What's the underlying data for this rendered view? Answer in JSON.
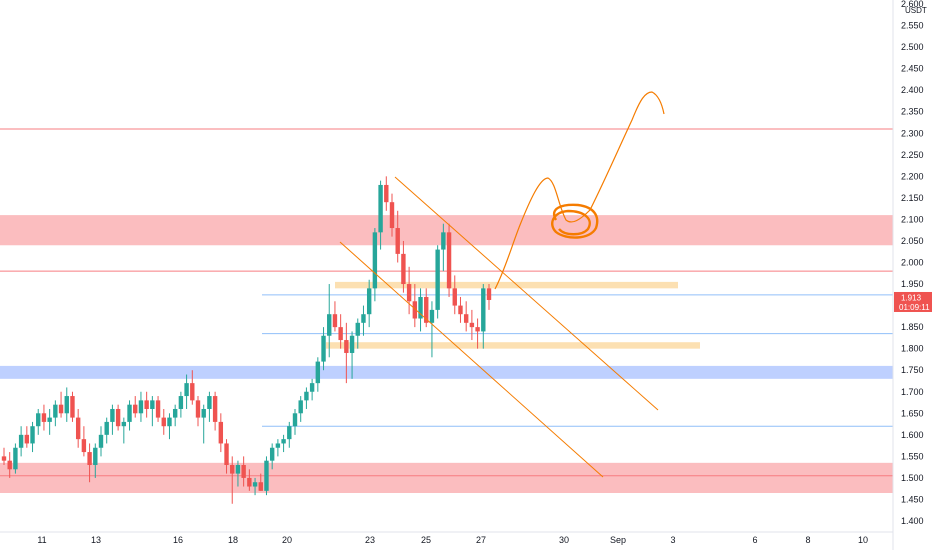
{
  "chart_data": {
    "type": "candlestick",
    "quote_unit": "USDT",
    "y_axis": {
      "range": [
        1.37,
        2.62
      ],
      "ticks": [
        "1.400",
        "1.450",
        "1.500",
        "1.550",
        "1.600",
        "1.650",
        "1.700",
        "1.750",
        "1.800",
        "1.850",
        "1.900",
        "1.950",
        "2.000",
        "2.050",
        "2.100",
        "2.150",
        "2.200",
        "2.250",
        "2.300",
        "2.350",
        "2.400",
        "2.450",
        "2.500",
        "2.550",
        "2.600"
      ]
    },
    "x_axis": {
      "ticks": [
        "11",
        "13",
        "16",
        "18",
        "20",
        "23",
        "25",
        "27",
        "30",
        "Sep",
        "3",
        "6",
        "8",
        "10"
      ]
    },
    "current_price": {
      "value": "1.913",
      "countdown": "01:09:11",
      "color": "#ef5350"
    },
    "colors": {
      "up": "#26a69a",
      "down": "#ef5350",
      "orange": "#f57c00",
      "red_zone": "#f77c80",
      "blue_zone": "#2962ff",
      "orange_zone": "#f5a623"
    },
    "zones": [
      {
        "color": "red",
        "from": 2.04,
        "to": 2.11
      },
      {
        "color": "blue",
        "from": 1.73,
        "to": 1.76
      },
      {
        "color": "red",
        "from": 1.465,
        "to": 1.535
      },
      {
        "color": "orange",
        "from": 1.94,
        "to": 1.955
      },
      {
        "color": "orange",
        "from": 1.8,
        "to": 1.815
      }
    ],
    "horizontal_lines": [
      {
        "color": "red",
        "price": 2.31
      },
      {
        "color": "red",
        "price": 1.98
      },
      {
        "color": "blue",
        "price": 1.925
      },
      {
        "color": "blue",
        "price": 1.835
      },
      {
        "color": "blue",
        "price": 1.62
      },
      {
        "color": "red",
        "price": 1.505
      }
    ],
    "candles": [
      [
        1.55,
        1.57,
        1.53,
        1.54
      ],
      [
        1.54,
        1.56,
        1.5,
        1.52
      ],
      [
        1.52,
        1.58,
        1.51,
        1.57
      ],
      [
        1.57,
        1.62,
        1.55,
        1.6
      ],
      [
        1.6,
        1.62,
        1.57,
        1.58
      ],
      [
        1.58,
        1.63,
        1.56,
        1.62
      ],
      [
        1.62,
        1.66,
        1.6,
        1.65
      ],
      [
        1.65,
        1.67,
        1.61,
        1.63
      ],
      [
        1.63,
        1.66,
        1.6,
        1.64
      ],
      [
        1.64,
        1.68,
        1.62,
        1.67
      ],
      [
        1.67,
        1.7,
        1.64,
        1.65
      ],
      [
        1.65,
        1.71,
        1.63,
        1.69
      ],
      [
        1.69,
        1.7,
        1.63,
        1.64
      ],
      [
        1.64,
        1.66,
        1.57,
        1.59
      ],
      [
        1.59,
        1.62,
        1.55,
        1.56
      ],
      [
        1.56,
        1.58,
        1.49,
        1.53
      ],
      [
        1.53,
        1.58,
        1.5,
        1.57
      ],
      [
        1.57,
        1.62,
        1.55,
        1.6
      ],
      [
        1.6,
        1.64,
        1.58,
        1.63
      ],
      [
        1.63,
        1.67,
        1.6,
        1.66
      ],
      [
        1.66,
        1.67,
        1.61,
        1.62
      ],
      [
        1.62,
        1.64,
        1.58,
        1.63
      ],
      [
        1.63,
        1.68,
        1.61,
        1.67
      ],
      [
        1.67,
        1.69,
        1.64,
        1.65
      ],
      [
        1.65,
        1.7,
        1.63,
        1.68
      ],
      [
        1.68,
        1.7,
        1.64,
        1.66
      ],
      [
        1.66,
        1.69,
        1.62,
        1.68
      ],
      [
        1.68,
        1.69,
        1.63,
        1.64
      ],
      [
        1.64,
        1.66,
        1.6,
        1.62
      ],
      [
        1.62,
        1.65,
        1.59,
        1.64
      ],
      [
        1.64,
        1.67,
        1.62,
        1.66
      ],
      [
        1.66,
        1.7,
        1.64,
        1.69
      ],
      [
        1.69,
        1.74,
        1.66,
        1.72
      ],
      [
        1.72,
        1.75,
        1.67,
        1.68
      ],
      [
        1.68,
        1.69,
        1.62,
        1.64
      ],
      [
        1.64,
        1.67,
        1.58,
        1.66
      ],
      [
        1.66,
        1.7,
        1.63,
        1.69
      ],
      [
        1.69,
        1.7,
        1.61,
        1.63
      ],
      [
        1.63,
        1.65,
        1.56,
        1.58
      ],
      [
        1.58,
        1.59,
        1.51,
        1.53
      ],
      [
        1.53,
        1.55,
        1.44,
        1.51
      ],
      [
        1.51,
        1.54,
        1.48,
        1.53
      ],
      [
        1.53,
        1.55,
        1.48,
        1.5
      ],
      [
        1.5,
        1.52,
        1.47,
        1.48
      ],
      [
        1.48,
        1.5,
        1.46,
        1.49
      ],
      [
        1.49,
        1.51,
        1.47,
        1.47
      ],
      [
        1.47,
        1.55,
        1.46,
        1.54
      ],
      [
        1.54,
        1.58,
        1.52,
        1.57
      ],
      [
        1.57,
        1.59,
        1.55,
        1.58
      ],
      [
        1.58,
        1.6,
        1.56,
        1.59
      ],
      [
        1.59,
        1.63,
        1.57,
        1.62
      ],
      [
        1.62,
        1.66,
        1.6,
        1.65
      ],
      [
        1.65,
        1.69,
        1.63,
        1.68
      ],
      [
        1.68,
        1.71,
        1.66,
        1.7
      ],
      [
        1.7,
        1.73,
        1.68,
        1.72
      ],
      [
        1.72,
        1.78,
        1.7,
        1.77
      ],
      [
        1.77,
        1.85,
        1.75,
        1.83
      ],
      [
        1.83,
        1.95,
        1.78,
        1.88
      ],
      [
        1.88,
        1.91,
        1.84,
        1.85
      ],
      [
        1.85,
        1.88,
        1.8,
        1.82
      ],
      [
        1.82,
        1.86,
        1.72,
        1.79
      ],
      [
        1.79,
        1.84,
        1.73,
        1.83
      ],
      [
        1.83,
        1.87,
        1.8,
        1.86
      ],
      [
        1.86,
        1.9,
        1.83,
        1.88
      ],
      [
        1.88,
        1.96,
        1.85,
        1.94
      ],
      [
        1.94,
        2.08,
        1.91,
        2.07
      ],
      [
        2.07,
        2.19,
        2.03,
        2.18
      ],
      [
        2.18,
        2.2,
        2.12,
        2.14
      ],
      [
        2.14,
        2.16,
        2.06,
        2.08
      ],
      [
        2.08,
        2.12,
        2.0,
        2.02
      ],
      [
        2.02,
        2.05,
        1.93,
        1.95
      ],
      [
        1.95,
        1.99,
        1.88,
        1.91
      ],
      [
        1.91,
        1.95,
        1.85,
        1.87
      ],
      [
        1.87,
        1.94,
        1.84,
        1.92
      ],
      [
        1.92,
        1.94,
        1.85,
        1.86
      ],
      [
        1.86,
        1.91,
        1.78,
        1.89
      ],
      [
        1.89,
        2.04,
        1.87,
        2.03
      ],
      [
        2.03,
        2.09,
        1.98,
        2.07
      ],
      [
        2.07,
        2.09,
        1.92,
        1.94
      ],
      [
        1.94,
        1.97,
        1.88,
        1.9
      ],
      [
        1.9,
        1.92,
        1.86,
        1.88
      ],
      [
        1.88,
        1.91,
        1.84,
        1.86
      ],
      [
        1.86,
        1.89,
        1.82,
        1.85
      ],
      [
        1.85,
        1.87,
        1.8,
        1.84
      ],
      [
        1.84,
        1.95,
        1.8,
        1.94
      ],
      [
        1.94,
        1.95,
        1.89,
        1.913
      ]
    ]
  }
}
